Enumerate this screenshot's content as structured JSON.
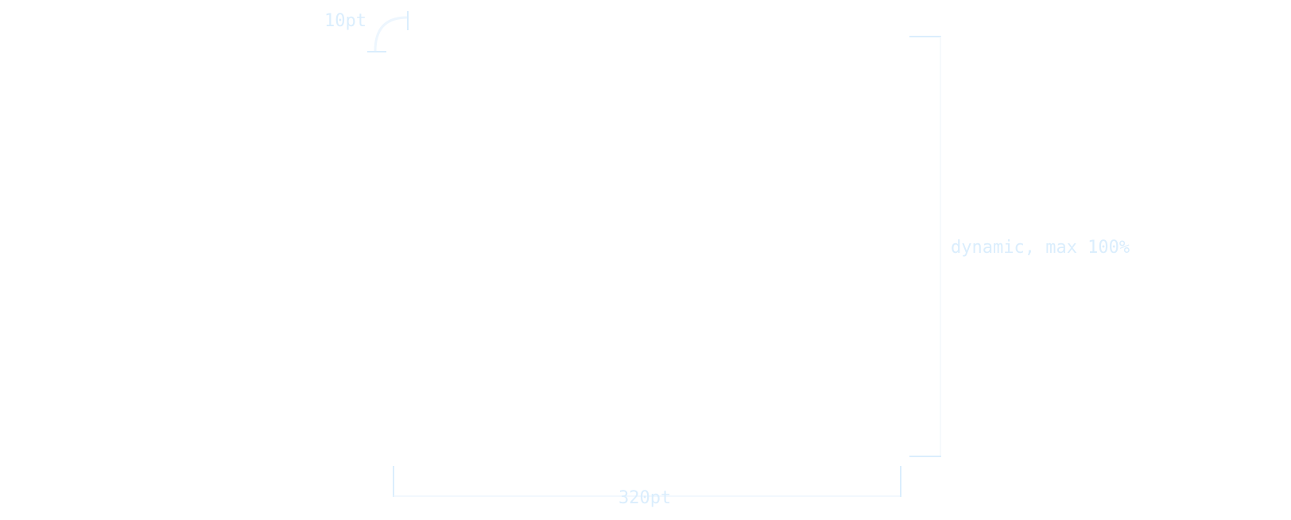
{
  "colors": {
    "line": "#dbeefd",
    "line_faint": "#edf6fe",
    "text": "#dbeefd"
  },
  "dimensions": {
    "corner_radius_label": "10pt",
    "height_label": "dynamic, max 100%",
    "width_label": "320pt"
  }
}
